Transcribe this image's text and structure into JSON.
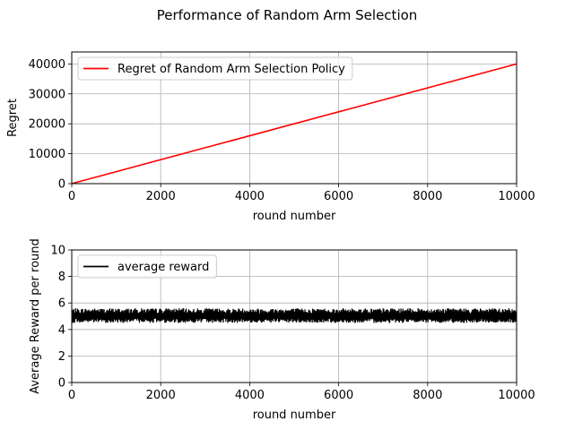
{
  "figure": {
    "title": "Performance of Random Arm Selection"
  },
  "chart_data": [
    {
      "type": "line",
      "title": "",
      "xlabel": "round number",
      "ylabel": "Regret",
      "xlim": [
        0,
        10000
      ],
      "ylim": [
        0,
        44000
      ],
      "xticks": [
        0,
        2000,
        4000,
        6000,
        8000,
        10000
      ],
      "yticks": [
        0,
        10000,
        20000,
        30000,
        40000
      ],
      "grid": true,
      "legend_position": "upper-left",
      "series": [
        {
          "name": "Regret of Random Arm Selection Policy",
          "color": "#ff0000",
          "x": [
            0,
            10000
          ],
          "y": [
            0,
            40000
          ]
        }
      ]
    },
    {
      "type": "line",
      "title": "",
      "xlabel": "round number",
      "ylabel": "Average Reward per round",
      "xlim": [
        0,
        10000
      ],
      "ylim": [
        0,
        10
      ],
      "xticks": [
        0,
        2000,
        4000,
        6000,
        8000,
        10000
      ],
      "yticks": [
        0,
        2,
        4,
        6,
        8,
        10
      ],
      "grid": true,
      "legend_position": "upper-left",
      "series": [
        {
          "name": "average reward",
          "color": "#000000",
          "x": [
            0,
            10000
          ],
          "y_mean": 5.0,
          "y_band": [
            4.5,
            5.6
          ]
        }
      ]
    }
  ]
}
